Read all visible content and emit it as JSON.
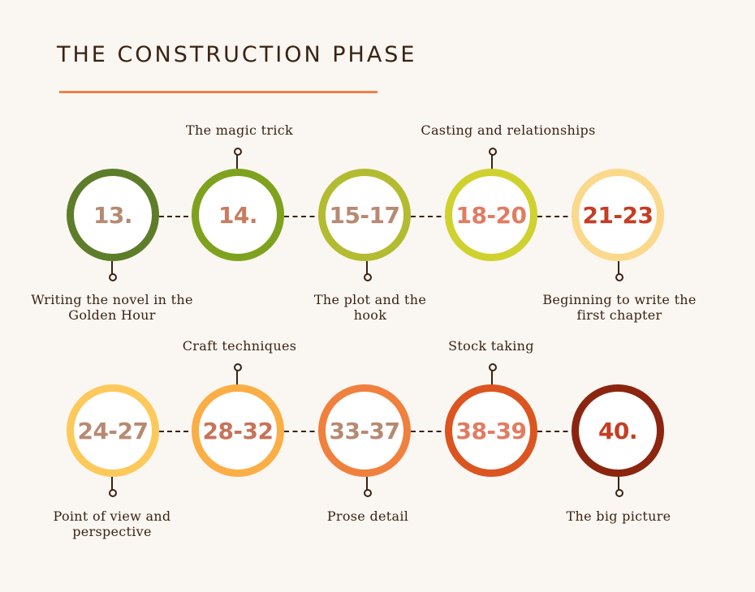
{
  "title": "THE CONSTRUCTION PHASE",
  "colors": {
    "background": "#faf6f1",
    "title_rule": "#ee8146",
    "dark": "#3a2314"
  },
  "row1": {
    "nodes": [
      {
        "number": "13.",
        "ring": "#5e7d2a",
        "text_color": "#b58a72"
      },
      {
        "number": "14.",
        "ring": "#7fa21e",
        "text_color": "#c77d5f"
      },
      {
        "number": "15-17",
        "ring": "#b3bb30",
        "text_color": "#b88972"
      },
      {
        "number": "18-20",
        "ring": "#cfd12f",
        "text_color": "#e07c62"
      },
      {
        "number": "21-23",
        "ring": "#fbd98c",
        "text_color": "#c53d24"
      }
    ],
    "labels": {
      "n13": "Writing the novel in the Golden Hour",
      "n14": "The magic trick",
      "n15": "The plot and the hook",
      "n18": "Casting and relationships",
      "n21": "Beginning to write the first chapter"
    }
  },
  "row2": {
    "nodes": [
      {
        "number": "24-27",
        "ring": "#fdc95b",
        "text_color": "#b88972"
      },
      {
        "number": "28-32",
        "ring": "#fbae45",
        "text_color": "#c7735a"
      },
      {
        "number": "33-37",
        "ring": "#f0803d",
        "text_color": "#b88972"
      },
      {
        "number": "38-39",
        "ring": "#dc5420",
        "text_color": "#e07c62"
      },
      {
        "number": "40.",
        "ring": "#8b2510",
        "text_color": "#c53d24"
      }
    ],
    "labels": {
      "n24": "Point of view and perspective",
      "n28": "Craft techniques",
      "n33": "Prose detail",
      "n38": "Stock taking",
      "n40": "The big picture"
    }
  }
}
